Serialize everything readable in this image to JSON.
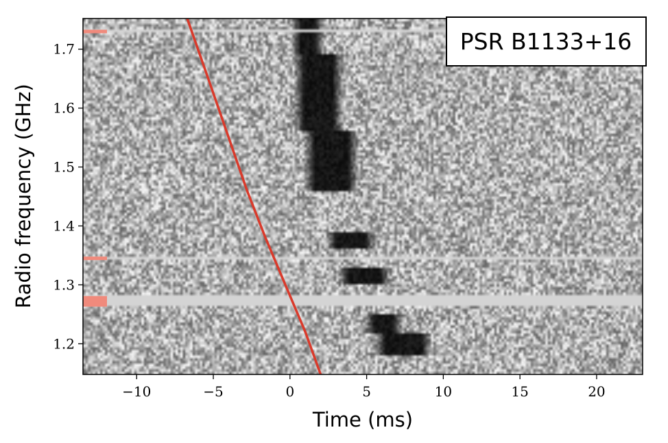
{
  "chart_data": {
    "type": "heatmap",
    "title": "PSR B1133+16",
    "xlabel": "Time (ms)",
    "ylabel": "Radio frequency (GHz)",
    "xlim": [
      -13.5,
      23
    ],
    "ylim": [
      1.148,
      1.752
    ],
    "x_ticks": [
      -10,
      -5,
      0,
      5,
      10,
      15,
      20
    ],
    "x_tick_labels": [
      "−10",
      "−5",
      "0",
      "5",
      "10",
      "15",
      "20"
    ],
    "y_ticks": [
      1.2,
      1.3,
      1.4,
      1.5,
      1.6,
      1.7
    ],
    "y_tick_labels": [
      "1.2",
      "1.3",
      "1.4",
      "1.5",
      "1.6",
      "1.7"
    ],
    "colormap": "grayscale (dark = high intensity)",
    "dispersion_curve": {
      "color": "#d93a2b",
      "points": [
        {
          "x": -6.7,
          "y": 1.752
        },
        {
          "x": -5.2,
          "y": 1.64
        },
        {
          "x": -4.0,
          "y": 1.55
        },
        {
          "x": -2.8,
          "y": 1.46
        },
        {
          "x": -1.6,
          "y": 1.38
        },
        {
          "x": -0.3,
          "y": 1.3
        },
        {
          "x": 1.0,
          "y": 1.22
        },
        {
          "x": 2.0,
          "y": 1.148
        }
      ]
    },
    "pulse_components": [
      {
        "t_start": 0.0,
        "t_end": 2.3,
        "f_low": 1.69,
        "f_high": 1.752
      },
      {
        "t_start": 0.2,
        "t_end": 3.5,
        "f_low": 1.56,
        "f_high": 1.69
      },
      {
        "t_start": 0.9,
        "t_end": 4.5,
        "f_low": 1.46,
        "f_high": 1.56
      },
      {
        "t_start": 2.3,
        "t_end": 5.6,
        "f_low": 1.36,
        "f_high": 1.39
      },
      {
        "t_start": 3.1,
        "t_end": 6.6,
        "f_low": 1.3,
        "f_high": 1.33
      },
      {
        "t_start": 4.8,
        "t_end": 7.4,
        "f_low": 1.22,
        "f_high": 1.25
      },
      {
        "t_start": 5.5,
        "t_end": 9.3,
        "f_low": 1.18,
        "f_high": 1.22
      }
    ],
    "masked_channels": [
      {
        "f": 1.73,
        "f_width": 0.006
      },
      {
        "f": 1.345,
        "f_width": 0.006
      },
      {
        "f": 1.272,
        "f_width": 0.018
      }
    ],
    "mask_marker_color": "#f08a7c",
    "masked_channel_fill": "#d4d4d4"
  }
}
